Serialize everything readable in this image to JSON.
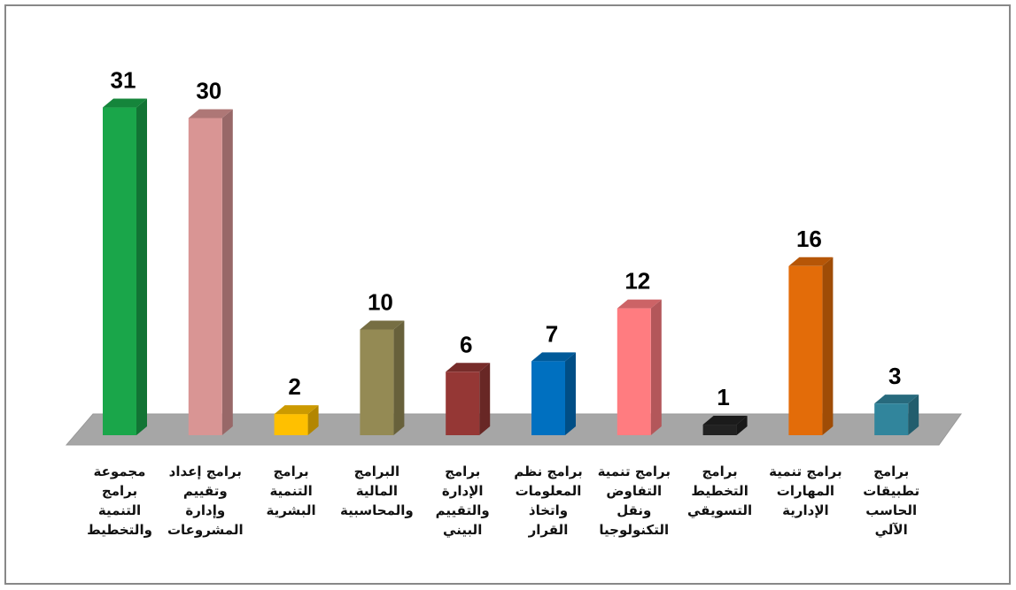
{
  "chart_data": {
    "type": "bar3d",
    "categories": [
      "مجموعة برامج التنمية والتخطيط",
      "برامج إعداد وتقييم وإدارة المشروعات",
      "برامج التنمية البشرية",
      "البرامج المالية والمحاسبية",
      "برامج الإدارة والتقييم البيني",
      "برامج نظم المعلومات واتخاذ القرار",
      "برامج تنمية التفاوض ونقل التكنولوجيا",
      "برامج التخطيط التسويقي",
      "برامج تنمية المهارات الإدارية",
      "برامج تطبيقات الحاسب الآلي"
    ],
    "values": [
      31,
      30,
      2,
      10,
      6,
      7,
      12,
      1,
      16,
      3
    ],
    "colors": [
      "#1aa64a",
      "#d99594",
      "#ffc000",
      "#948a54",
      "#953735",
      "#0070c0",
      "#ff7c80",
      "#222222",
      "#e36c09",
      "#31859c"
    ]
  }
}
